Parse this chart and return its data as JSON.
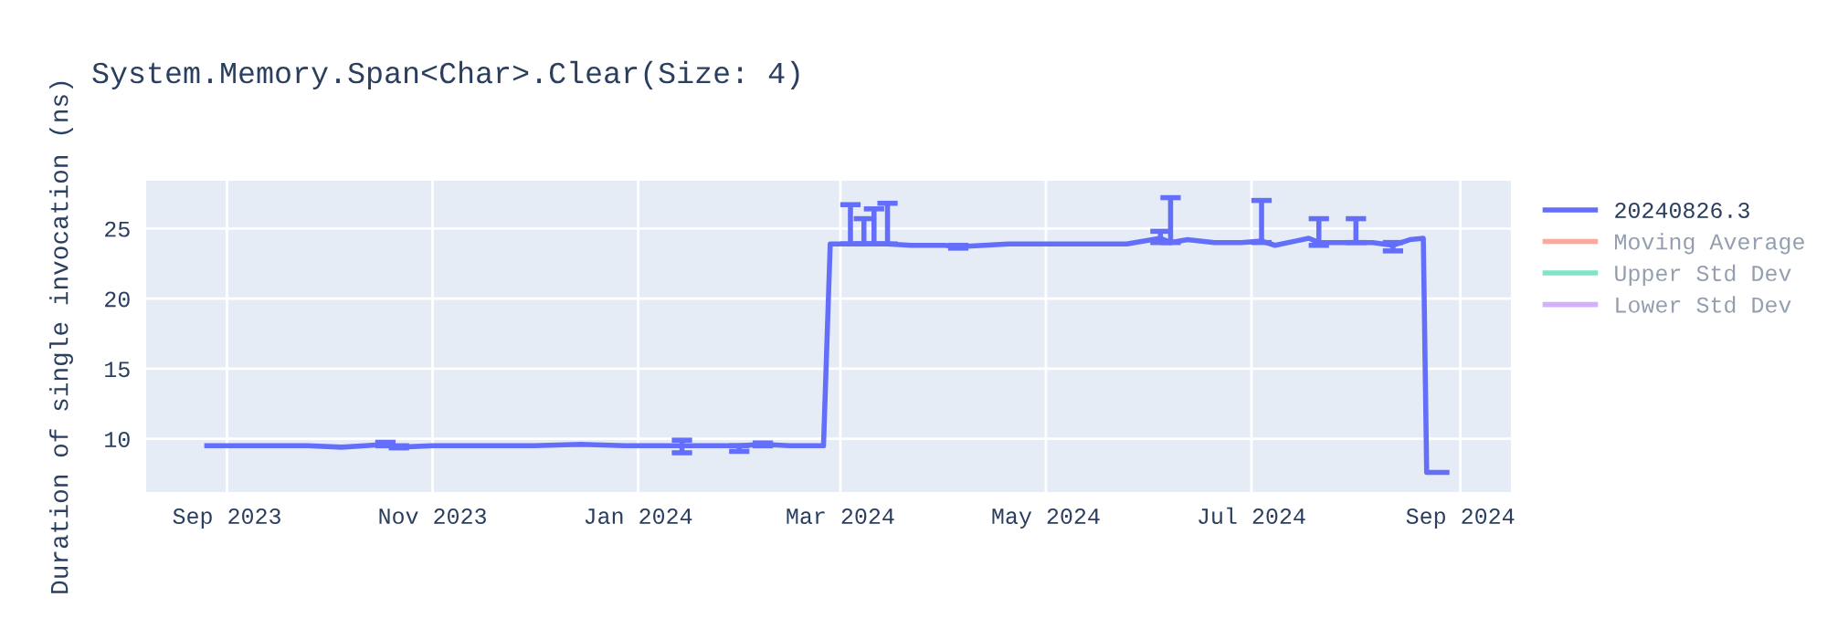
{
  "chart_data": {
    "type": "line",
    "title": "System.Memory.Span<Char>.Clear(Size: 4)",
    "ylabel": "Duration of single invocation (ns)",
    "x": [
      "2023-08-26",
      "2023-09-05",
      "2023-09-15",
      "2023-09-25",
      "2023-10-05",
      "2023-10-12",
      "2023-10-18",
      "2023-10-22",
      "2023-11-01",
      "2023-11-15",
      "2023-12-01",
      "2023-12-15",
      "2023-12-28",
      "2024-01-08",
      "2024-01-14",
      "2024-01-20",
      "2024-01-31",
      "2024-02-07",
      "2024-02-15",
      "2024-02-25",
      "2024-02-27",
      "2024-03-04",
      "2024-03-08",
      "2024-03-11",
      "2024-03-15",
      "2024-03-22",
      "2024-04-01",
      "2024-04-05",
      "2024-04-20",
      "2024-05-01",
      "2024-05-15",
      "2024-05-25",
      "2024-06-04",
      "2024-06-07",
      "2024-06-12",
      "2024-06-20",
      "2024-06-28",
      "2024-07-04",
      "2024-07-08",
      "2024-07-14",
      "2024-07-18",
      "2024-07-21",
      "2024-07-26",
      "2024-08-01",
      "2024-08-06",
      "2024-08-12",
      "2024-08-17",
      "2024-08-21",
      "2024-08-22",
      "2024-08-28"
    ],
    "series": [
      {
        "name": "20240826.3",
        "color": "#636efa",
        "values": [
          9.5,
          9.5,
          9.5,
          9.5,
          9.4,
          9.5,
          9.6,
          9.4,
          9.5,
          9.5,
          9.5,
          9.6,
          9.5,
          9.5,
          9.5,
          9.5,
          9.5,
          9.6,
          9.5,
          9.5,
          23.9,
          23.9,
          23.9,
          23.9,
          23.9,
          23.8,
          23.8,
          23.7,
          23.9,
          23.9,
          23.9,
          23.9,
          24.3,
          24.0,
          24.2,
          24.0,
          24.0,
          24.1,
          23.8,
          24.1,
          24.3,
          24.0,
          24.0,
          24.0,
          24.0,
          23.8,
          24.2,
          24.3,
          7.6,
          7.6
        ],
        "errors": [
          null,
          null,
          null,
          null,
          null,
          null,
          [
            9.5,
            9.75
          ],
          [
            9.35,
            9.5
          ],
          null,
          null,
          null,
          null,
          null,
          null,
          [
            9.0,
            9.9
          ],
          null,
          [
            9.1,
            9.5
          ],
          [
            9.5,
            9.7
          ],
          null,
          null,
          null,
          [
            23.9,
            26.7
          ],
          [
            23.9,
            25.7
          ],
          [
            23.9,
            26.4
          ],
          [
            23.9,
            26.8
          ],
          null,
          null,
          [
            23.6,
            23.8
          ],
          null,
          null,
          null,
          null,
          [
            24.0,
            24.8
          ],
          [
            24.0,
            27.2
          ],
          null,
          null,
          null,
          [
            24.0,
            27.0
          ],
          null,
          null,
          null,
          [
            23.8,
            25.7
          ],
          null,
          [
            24.0,
            25.7
          ],
          null,
          [
            23.4,
            24.0
          ],
          null,
          null,
          null,
          null
        ]
      },
      {
        "name": "Moving Average",
        "color": "#ef553b",
        "values": [
          null,
          null,
          null,
          null,
          null,
          null,
          null,
          null,
          null,
          null,
          null,
          null,
          null,
          null,
          null,
          null,
          null,
          null,
          null,
          null,
          null,
          null,
          null,
          null,
          null,
          null,
          null,
          null,
          null,
          null,
          null,
          null,
          null,
          null,
          null,
          null,
          null,
          null,
          null,
          null,
          null,
          null,
          null,
          null,
          null,
          null,
          null,
          null,
          null,
          null
        ]
      },
      {
        "name": "Upper Std Dev",
        "color": "#00cc96",
        "values": [
          null,
          null,
          null,
          null,
          null,
          null,
          null,
          null,
          null,
          null,
          null,
          null,
          null,
          null,
          null,
          null,
          null,
          null,
          null,
          null,
          null,
          null,
          null,
          null,
          null,
          null,
          null,
          null,
          null,
          null,
          null,
          null,
          null,
          null,
          null,
          null,
          null,
          null,
          null,
          null,
          null,
          null,
          null,
          null,
          null,
          null,
          null,
          null,
          null,
          null
        ]
      },
      {
        "name": "Lower Std Dev",
        "color": "#ab63fa",
        "values": [
          null,
          null,
          null,
          null,
          null,
          null,
          null,
          null,
          null,
          null,
          null,
          null,
          null,
          null,
          null,
          null,
          null,
          null,
          null,
          null,
          null,
          null,
          null,
          null,
          null,
          null,
          null,
          null,
          null,
          null,
          null,
          null,
          null,
          null,
          null,
          null,
          null,
          null,
          null,
          null,
          null,
          null,
          null,
          null,
          null,
          null,
          null,
          null,
          null,
          null
        ]
      }
    ],
    "xlim": [
      "2023-08-08",
      "2024-09-16"
    ],
    "xticks": [
      {
        "value": "2023-09-01",
        "label": "Sep 2023"
      },
      {
        "value": "2023-11-01",
        "label": "Nov 2023"
      },
      {
        "value": "2024-01-01",
        "label": "Jan 2024"
      },
      {
        "value": "2024-03-01",
        "label": "Mar 2024"
      },
      {
        "value": "2024-05-01",
        "label": "May 2024"
      },
      {
        "value": "2024-07-01",
        "label": "Jul 2024"
      },
      {
        "value": "2024-09-01",
        "label": "Sep 2024"
      }
    ],
    "ylim": [
      6.2,
      28.4
    ],
    "yticks": [
      10,
      15,
      20,
      25
    ],
    "grid": true,
    "legend": "top right",
    "marker": "none",
    "line_style": "solid"
  }
}
